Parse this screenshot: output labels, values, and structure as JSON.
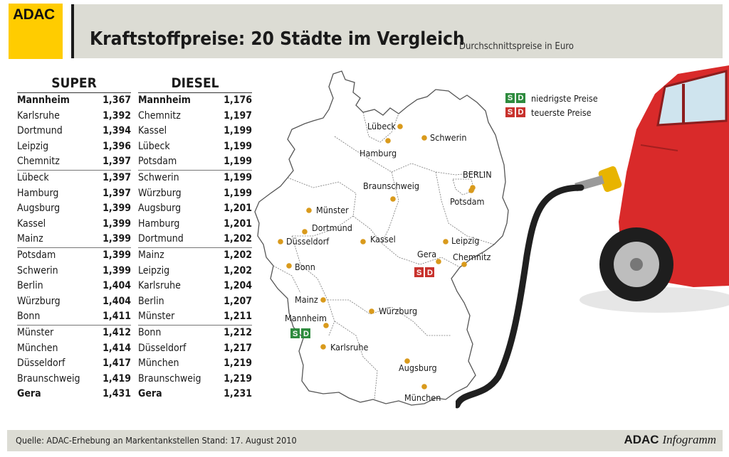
{
  "header": {
    "logo_text": "ADAC",
    "title": "Kraftstoffpreise: 20 Städte im Vergleich",
    "subtitle": "Durchschnittspreise in Euro"
  },
  "super": {
    "heading": "SUPER",
    "groups": [
      [
        [
          "Mannheim",
          "1,367"
        ],
        [
          "Karlsruhe",
          "1,392"
        ],
        [
          "Dortmund",
          "1,394"
        ],
        [
          "Leipzig",
          "1,396"
        ],
        [
          "Chemnitz",
          "1,397"
        ]
      ],
      [
        [
          "Lübeck",
          "1,397"
        ],
        [
          "Hamburg",
          "1,397"
        ],
        [
          "Augsburg",
          "1,399"
        ],
        [
          "Kassel",
          "1,399"
        ],
        [
          "Mainz",
          "1,399"
        ]
      ],
      [
        [
          "Potsdam",
          "1,399"
        ],
        [
          "Schwerin",
          "1,399"
        ],
        [
          "Berlin",
          "1,404"
        ],
        [
          "Würzburg",
          "1,404"
        ],
        [
          "Bonn",
          "1,411"
        ]
      ],
      [
        [
          "Münster",
          "1,412"
        ],
        [
          "München",
          "1,414"
        ],
        [
          "Düsseldorf",
          "1,417"
        ],
        [
          "Braunschweig",
          "1,419"
        ],
        [
          "Gera",
          "1,431"
        ]
      ]
    ]
  },
  "diesel": {
    "heading": "DIESEL",
    "groups": [
      [
        [
          "Mannheim",
          "1,176"
        ],
        [
          "Chemnitz",
          "1,197"
        ],
        [
          "Kassel",
          "1,199"
        ],
        [
          "Lübeck",
          "1,199"
        ],
        [
          "Potsdam",
          "1,199"
        ]
      ],
      [
        [
          "Schwerin",
          "1,199"
        ],
        [
          "Würzburg",
          "1,199"
        ],
        [
          "Augsburg",
          "1,201"
        ],
        [
          "Hamburg",
          "1,201"
        ],
        [
          "Dortmund",
          "1,202"
        ]
      ],
      [
        [
          "Mainz",
          "1,202"
        ],
        [
          "Leipzig",
          "1,202"
        ],
        [
          "Karlsruhe",
          "1,204"
        ],
        [
          "Berlin",
          "1,207"
        ],
        [
          "Münster",
          "1,211"
        ]
      ],
      [
        [
          "Bonn",
          "1,212"
        ],
        [
          "Düsseldorf",
          "1,217"
        ],
        [
          "München",
          "1,219"
        ],
        [
          "Braunschweig",
          "1,219"
        ],
        [
          "Gera",
          "1,231"
        ]
      ]
    ]
  },
  "map": {
    "cities": [
      "Lübeck",
      "Schwerin",
      "Hamburg",
      "BERLIN",
      "Braunschweig",
      "Potsdam",
      "Münster",
      "Dortmund",
      "Kassel",
      "Düsseldorf",
      "Leipzig",
      "Chemnitz",
      "Gera",
      "Bonn",
      "Mainz",
      "Würzburg",
      "Mannheim",
      "Karlsruhe",
      "Augsburg",
      "München"
    ],
    "badge_letters": [
      "S",
      "D"
    ]
  },
  "legend": {
    "low_label": "niedrigste Preise",
    "high_label": "teuerste Preise"
  },
  "colors": {
    "dot": "#d99a1c",
    "low": "#2e8b3e",
    "high": "#c8322d",
    "car": "#d92a2a",
    "logo": "#ffcc00"
  },
  "footer": {
    "source": "Quelle: ADAC-Erhebung an Markentankstellen    Stand: 17. August 2010",
    "brand_a": "ADAC",
    "brand_b": "Infogramm"
  }
}
